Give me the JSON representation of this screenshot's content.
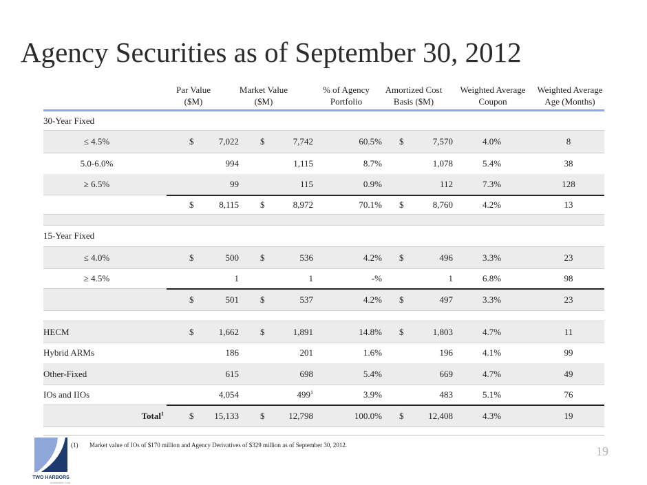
{
  "title": "Agency Securities as of September 30, 2012",
  "headers_lines": [
    [
      "Par Value",
      "($M)"
    ],
    [
      "Market Value",
      "($M)"
    ],
    [
      "% of Agency",
      "Portfolio"
    ],
    [
      "Amortized Cost",
      "Basis ($M)"
    ],
    [
      "Weighted Average",
      "Coupon"
    ],
    [
      "Weighted Average",
      "Age (Months)"
    ]
  ],
  "sections": {
    "s30": "30-Year Fixed",
    "s15": "15-Year Fixed"
  },
  "rows": [
    {
      "label": "≤ 4.5%",
      "d1": "$",
      "par": "7,022",
      "d2": "$",
      "mkt": "7,742",
      "pct": "60.5%",
      "d3": "$",
      "amort": "7,570",
      "coupon": "4.0%",
      "age": "8"
    },
    {
      "label": "5.0-6.0%",
      "d1": "",
      "par": "994",
      "d2": "",
      "mkt": "1,115",
      "pct": "8.7%",
      "d3": "",
      "amort": "1,078",
      "coupon": "5.4%",
      "age": "38"
    },
    {
      "label": "≥ 6.5%",
      "d1": "",
      "par": "99",
      "d2": "",
      "mkt": "115",
      "pct": "0.9%",
      "d3": "",
      "amort": "112",
      "coupon": "7.3%",
      "age": "128"
    },
    {
      "label": "",
      "d1": "$",
      "par": "8,115",
      "d2": "$",
      "mkt": "8,972",
      "pct": "70.1%",
      "d3": "$",
      "amort": "8,760",
      "coupon": "4.2%",
      "age": "13"
    },
    {
      "label": "≤ 4.0%",
      "d1": "$",
      "par": "500",
      "d2": "$",
      "mkt": "536",
      "pct": "4.2%",
      "d3": "$",
      "amort": "496",
      "coupon": "3.3%",
      "age": "23"
    },
    {
      "label": "≥ 4.5%",
      "d1": "",
      "par": "1",
      "d2": "",
      "mkt": "1",
      "pct": "-%",
      "d3": "",
      "amort": "1",
      "coupon": "6.8%",
      "age": "98"
    },
    {
      "label": "",
      "d1": "$",
      "par": "501",
      "d2": "$",
      "mkt": "537",
      "pct": "4.2%",
      "d3": "$",
      "amort": "497",
      "coupon": "3.3%",
      "age": "23"
    },
    {
      "label": "HECM",
      "d1": "$",
      "par": "1,662",
      "d2": "$",
      "mkt": "1,891",
      "pct": "14.8%",
      "d3": "$",
      "amort": "1,803",
      "coupon": "4.7%",
      "age": "11"
    },
    {
      "label": "Hybrid ARMs",
      "d1": "",
      "par": "186",
      "d2": "",
      "mkt": "201",
      "pct": "1.6%",
      "d3": "",
      "amort": "196",
      "coupon": "4.1%",
      "age": "99"
    },
    {
      "label": "Other-Fixed",
      "d1": "",
      "par": "615",
      "d2": "",
      "mkt": "698",
      "pct": "5.4%",
      "d3": "",
      "amort": "669",
      "coupon": "4.7%",
      "age": "49"
    },
    {
      "label": "IOs and IIOs",
      "d1": "",
      "par": "4,054",
      "d2": "",
      "mkt": "499",
      "mkt_sup": "1",
      "pct": "3.9%",
      "d3": "",
      "amort": "483",
      "coupon": "5.1%",
      "age": "76"
    },
    {
      "label": "Total",
      "label_sup": "1",
      "d1": "$",
      "par": "15,133",
      "d2": "$",
      "mkt": "12,798",
      "pct": "100.0%",
      "d3": "$",
      "amort": "12,408",
      "coupon": "4.3%",
      "age": "19"
    }
  ],
  "footnote": {
    "num": "(1)",
    "text": "Market value of IOs of $170 million and Agency Derivatives of $329 million as of September 30, 2012."
  },
  "page_number": "19",
  "logo": {
    "name": "TWO HARBORS",
    "sub": "Investment Corp."
  }
}
